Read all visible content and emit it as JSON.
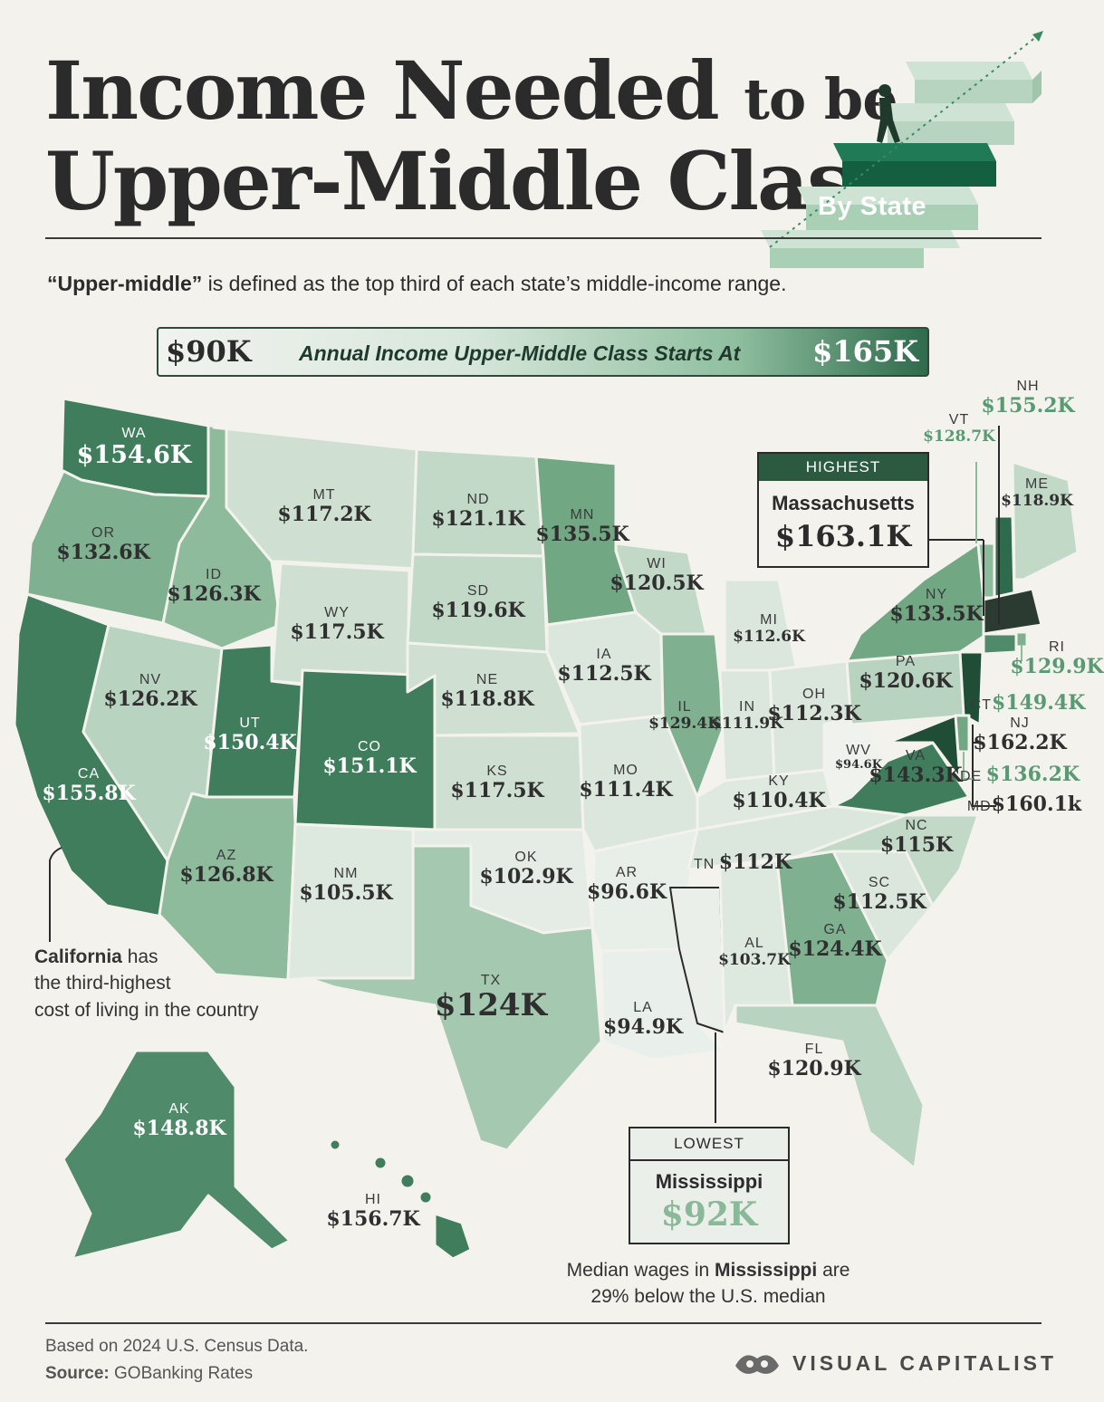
{
  "header": {
    "title_line1_main": "Income Needed",
    "title_line1_small": "to be",
    "title_line2": "Upper-Middle Class",
    "byline": "By State"
  },
  "subtitle": {
    "bold": "“Upper-middle”",
    "rest": "is defined as the top third of each state’s middle-income range."
  },
  "legend": {
    "low": "$90K",
    "label": "Annual Income Upper-Middle Class Starts At",
    "high": "$165K",
    "color_low": "#f1f3ee",
    "color_high": "#2e6a4c"
  },
  "states": {
    "WA": {
      "ab": "WA",
      "v": "$154.6K"
    },
    "OR": {
      "ab": "OR",
      "v": "$132.6K"
    },
    "CA": {
      "ab": "CA",
      "v": "$155.8K"
    },
    "NV": {
      "ab": "NV",
      "v": "$126.2K"
    },
    "ID": {
      "ab": "ID",
      "v": "$126.3K"
    },
    "MT": {
      "ab": "MT",
      "v": "$117.2K"
    },
    "WY": {
      "ab": "WY",
      "v": "$117.5K"
    },
    "UT": {
      "ab": "UT",
      "v": "$150.4K"
    },
    "CO": {
      "ab": "CO",
      "v": "$151.1K"
    },
    "AZ": {
      "ab": "AZ",
      "v": "$126.8K"
    },
    "NM": {
      "ab": "NM",
      "v": "$105.5K"
    },
    "ND": {
      "ab": "ND",
      "v": "$121.1K"
    },
    "SD": {
      "ab": "SD",
      "v": "$119.6K"
    },
    "NE": {
      "ab": "NE",
      "v": "$118.8K"
    },
    "KS": {
      "ab": "KS",
      "v": "$117.5K"
    },
    "OK": {
      "ab": "OK",
      "v": "$102.9K"
    },
    "TX": {
      "ab": "TX",
      "v": "$124K"
    },
    "MN": {
      "ab": "MN",
      "v": "$135.5K"
    },
    "IA": {
      "ab": "IA",
      "v": "$112.5K"
    },
    "MO": {
      "ab": "MO",
      "v": "$111.4K"
    },
    "AR": {
      "ab": "AR",
      "v": "$96.6K"
    },
    "LA": {
      "ab": "LA",
      "v": "$94.9K"
    },
    "WI": {
      "ab": "WI",
      "v": "$120.5K"
    },
    "IL": {
      "ab": "IL",
      "v": "$129.4K"
    },
    "MI": {
      "ab": "MI",
      "v": "$112.6K"
    },
    "IN": {
      "ab": "IN",
      "v": "$111.9K"
    },
    "OH": {
      "ab": "OH",
      "v": "$112.3K"
    },
    "KY": {
      "ab": "KY",
      "v": "$110.4K"
    },
    "TN": {
      "ab": "TN",
      "v": "$112K"
    },
    "AL": {
      "ab": "AL",
      "v": "$103.7K"
    },
    "GA": {
      "ab": "GA",
      "v": "$124.4K"
    },
    "FL": {
      "ab": "FL",
      "v": "$120.9K"
    },
    "SC": {
      "ab": "SC",
      "v": "$112.5K"
    },
    "NC": {
      "ab": "NC",
      "v": "$115K"
    },
    "VA": {
      "ab": "VA",
      "v": "$143.3K"
    },
    "WV": {
      "ab": "WV",
      "v": "$94.6K"
    },
    "PA": {
      "ab": "PA",
      "v": "$120.6K"
    },
    "NY": {
      "ab": "NY",
      "v": "$133.5K"
    },
    "ME": {
      "ab": "ME",
      "v": "$118.9K"
    },
    "VT": {
      "ab": "VT",
      "v": "$128.7K"
    },
    "NH": {
      "ab": "NH",
      "v": "$155.2K"
    },
    "RI": {
      "ab": "RI",
      "v": "$129.9K"
    },
    "CT": {
      "ab": "CT",
      "v": "$149.4K"
    },
    "NJ": {
      "ab": "NJ",
      "v": "$162.2K"
    },
    "DE": {
      "ab": "DE",
      "v": "$136.2K"
    },
    "MD": {
      "ab": "MD",
      "v": "$160.1k"
    },
    "AK": {
      "ab": "AK",
      "v": "$148.8K"
    },
    "HI": {
      "ab": "HI",
      "v": "$156.7K"
    }
  },
  "highest": {
    "label": "HIGHEST",
    "state": "Massachusetts",
    "value": "$163.1K"
  },
  "lowest": {
    "label": "LOWEST",
    "state": "Mississippi",
    "value": "$92K"
  },
  "notes": {
    "california_bold": "California",
    "california_line1": "has",
    "california_line2": "the third-highest",
    "california_line3": "cost of living in the country",
    "ms_line1_pre": "Median wages in",
    "ms_line1_bold": "Mississippi",
    "ms_line1_post": "are",
    "ms_line2": "29% below the U.S. median"
  },
  "footer": {
    "based": "Based on 2024 U.S. Census Data.",
    "source_label": "Source:",
    "source": "GOBanking Rates",
    "brand": "VISUAL CAPITALIST"
  }
}
